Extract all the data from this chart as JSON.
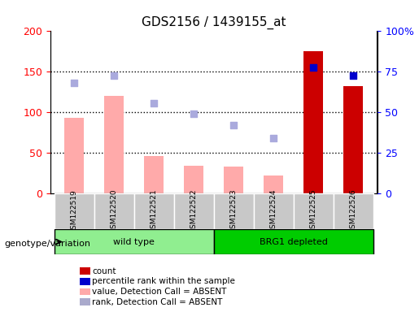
{
  "title": "GDS2156 / 1439155_at",
  "samples": [
    "GSM122519",
    "GSM122520",
    "GSM122521",
    "GSM122522",
    "GSM122523",
    "GSM122524",
    "GSM122525",
    "GSM122526"
  ],
  "bar_values_pink": [
    93,
    120,
    46,
    34,
    33,
    22,
    0,
    0
  ],
  "bar_values_red": [
    0,
    0,
    0,
    0,
    0,
    0,
    175,
    132
  ],
  "dots_blue_dark": [
    null,
    null,
    null,
    null,
    null,
    null,
    155,
    145
  ],
  "dots_blue_light": [
    136,
    145,
    111,
    98,
    84,
    68,
    null,
    null
  ],
  "ylim_left": [
    0,
    200
  ],
  "ylim_right": [
    0,
    100
  ],
  "yticks_left": [
    0,
    50,
    100,
    150,
    200
  ],
  "ytick_labels_left": [
    "0",
    "50",
    "100",
    "150",
    "200"
  ],
  "yticks_right": [
    0,
    25,
    50,
    75,
    100
  ],
  "ytick_labels_right": [
    "0",
    "25",
    "50",
    "75",
    "100%"
  ],
  "hlines": [
    50,
    100,
    150
  ],
  "group1_label": "wild type",
  "group2_label": "BRG1 depleted",
  "group1_indices": [
    0,
    1,
    2,
    3
  ],
  "group2_indices": [
    4,
    5,
    6,
    7
  ],
  "genotype_label": "genotype/variation",
  "legend_items": [
    {
      "label": "count",
      "color": "#cc0000",
      "type": "square"
    },
    {
      "label": "percentile rank within the sample",
      "color": "#0000cc",
      "type": "square"
    },
    {
      "label": "value, Detection Call = ABSENT",
      "color": "#ffaaaa",
      "type": "square"
    },
    {
      "label": "rank, Detection Call = ABSENT",
      "color": "#aaaacc",
      "type": "square"
    }
  ],
  "pink_bar_color": "#ffaaaa",
  "red_bar_color": "#cc0000",
  "dark_blue_dot_color": "#0000cc",
  "light_blue_dot_color": "#aaaadd",
  "group1_bg": "#90ee90",
  "group2_bg": "#00cc00",
  "xticklabel_bg": "#c8c8c8",
  "plot_bg": "#ffffff",
  "bar_width": 0.5
}
